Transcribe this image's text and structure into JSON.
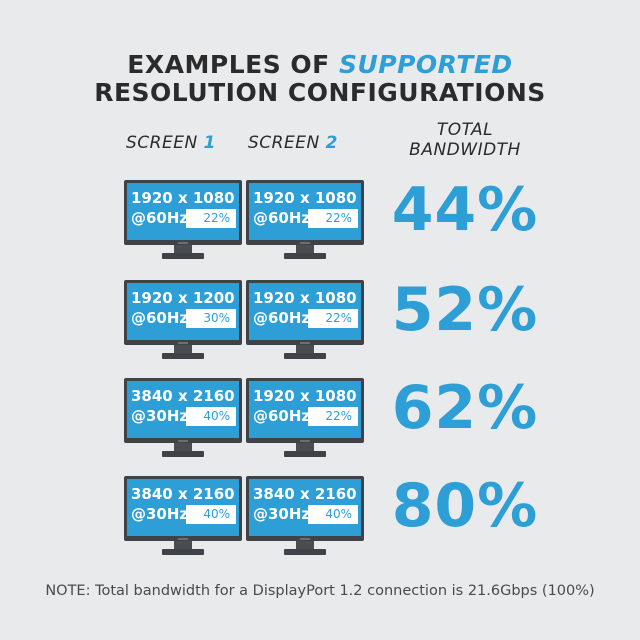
{
  "title": {
    "line1_prefix": "EXAMPLES OF",
    "line1_accent": "SUPPORTED",
    "line2": "RESOLUTION CONFIGURATIONS"
  },
  "headers": {
    "screen1_label": "SCREEN",
    "screen1_num": "1",
    "screen2_label": "SCREEN",
    "screen2_num": "2",
    "bandwidth_line1": "TOTAL",
    "bandwidth_line2": "BANDWIDTH"
  },
  "rows": [
    {
      "s1": {
        "res": "1920 x 1080",
        "hz": "@60Hz",
        "pct": "22%"
      },
      "s2": {
        "res": "1920 x 1080",
        "hz": "@60Hz",
        "pct": "22%"
      },
      "total": "44%"
    },
    {
      "s1": {
        "res": "1920 x 1200",
        "hz": "@60Hz",
        "pct": "30%"
      },
      "s2": {
        "res": "1920 x 1080",
        "hz": "@60Hz",
        "pct": "22%"
      },
      "total": "52%"
    },
    {
      "s1": {
        "res": "3840 x 2160",
        "hz": "@30Hz",
        "pct": "40%"
      },
      "s2": {
        "res": "1920 x 1080",
        "hz": "@60Hz",
        "pct": "22%"
      },
      "total": "62%"
    },
    {
      "s1": {
        "res": "3840 x 2160",
        "hz": "@30Hz",
        "pct": "40%"
      },
      "s2": {
        "res": "3840 x 2160",
        "hz": "@30Hz",
        "pct": "40%"
      },
      "total": "80%"
    }
  ],
  "note": "NOTE: Total bandwidth for a DisplayPort 1.2 connection is 21.6Gbps (100%)",
  "colors": {
    "accent": "#2e9fd6",
    "background": "#e9eaec",
    "bezel": "#3f4247",
    "text": "#2b2b2b"
  }
}
